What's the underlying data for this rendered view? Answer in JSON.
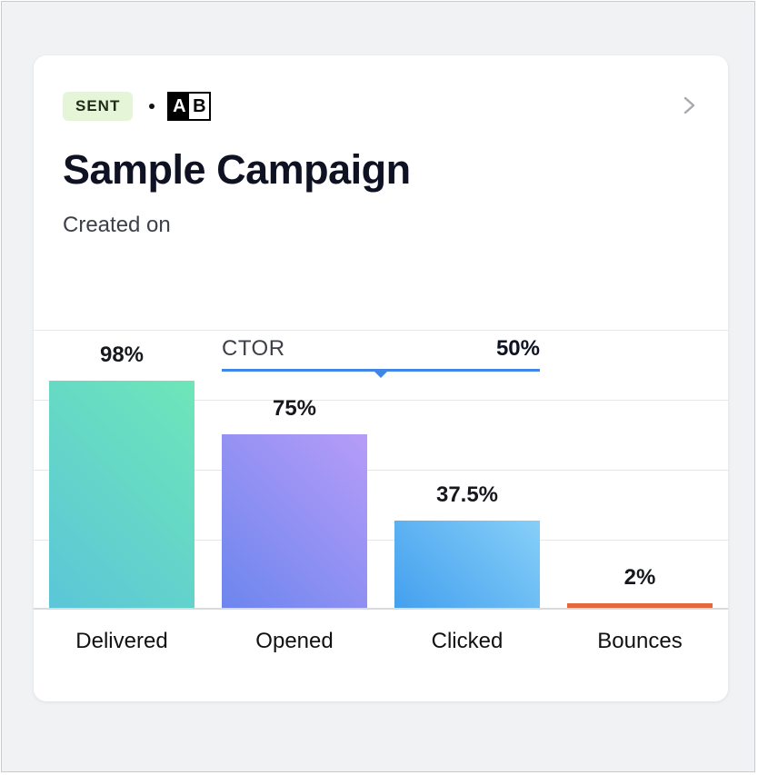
{
  "campaign": {
    "status_badge": "SENT",
    "ab_icon": {
      "a": "A",
      "b": "B"
    },
    "title": "Sample Campaign",
    "subtitle": "Created on"
  },
  "ctor": {
    "label": "CTOR",
    "value": "50%"
  },
  "colors": {
    "delivered": [
      "#5bc6d8",
      "#6ee6b8"
    ],
    "opened": [
      "#6c86ee",
      "#b79cf8"
    ],
    "clicked": [
      "#44a0ee",
      "#86cff8"
    ],
    "bounces": "#e4673e",
    "ctor": "#3f86e6",
    "badge_bg": "#e4f5d8"
  },
  "chart_data": {
    "type": "bar",
    "categories": [
      "Delivered",
      "Opened",
      "Clicked",
      "Bounces"
    ],
    "values": [
      98,
      75,
      37.5,
      2
    ],
    "value_labels": [
      "98%",
      "75%",
      "37.5%",
      "2%"
    ],
    "ylim": [
      0,
      100
    ],
    "grid": true
  }
}
